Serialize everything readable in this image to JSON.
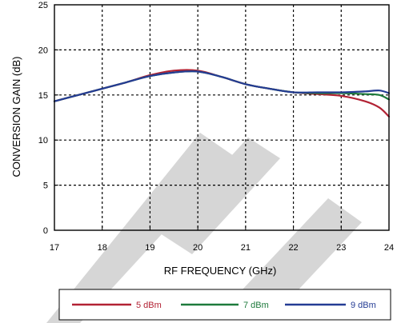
{
  "chart_data": {
    "type": "line",
    "title": "",
    "xlabel": "RF FREQUENCY (GHz)",
    "ylabel": "CONVERSION GAIN (dB)",
    "xlim": [
      17,
      24
    ],
    "ylim": [
      0,
      25
    ],
    "x_ticks": [
      "17",
      "18",
      "19",
      "20",
      "21",
      "22",
      "23",
      "24"
    ],
    "y_ticks": [
      "0",
      "5",
      "10",
      "15",
      "20",
      "25"
    ],
    "grid": true,
    "legend_position": "bottom",
    "x": [
      17,
      17.5,
      18,
      18.5,
      19,
      19.5,
      20,
      20.5,
      21,
      21.5,
      22,
      22.5,
      23,
      23.5,
      23.8,
      24
    ],
    "series": [
      {
        "name": "5 dBm",
        "color": "#b22234",
        "values": [
          14.3,
          15.0,
          15.7,
          16.4,
          17.2,
          17.7,
          17.7,
          17.0,
          16.2,
          15.7,
          15.3,
          15.1,
          14.9,
          14.3,
          13.6,
          12.6
        ]
      },
      {
        "name": "7 dBm",
        "color": "#1e7a3c",
        "values": [
          14.3,
          15.0,
          15.7,
          16.4,
          17.1,
          17.5,
          17.6,
          17.0,
          16.2,
          15.7,
          15.3,
          15.2,
          15.2,
          15.1,
          15.0,
          14.5
        ]
      },
      {
        "name": "9 dBm",
        "color": "#243c94",
        "values": [
          14.3,
          15.0,
          15.7,
          16.4,
          17.1,
          17.5,
          17.6,
          17.0,
          16.2,
          15.7,
          15.3,
          15.3,
          15.3,
          15.4,
          15.5,
          15.2
        ]
      }
    ]
  }
}
